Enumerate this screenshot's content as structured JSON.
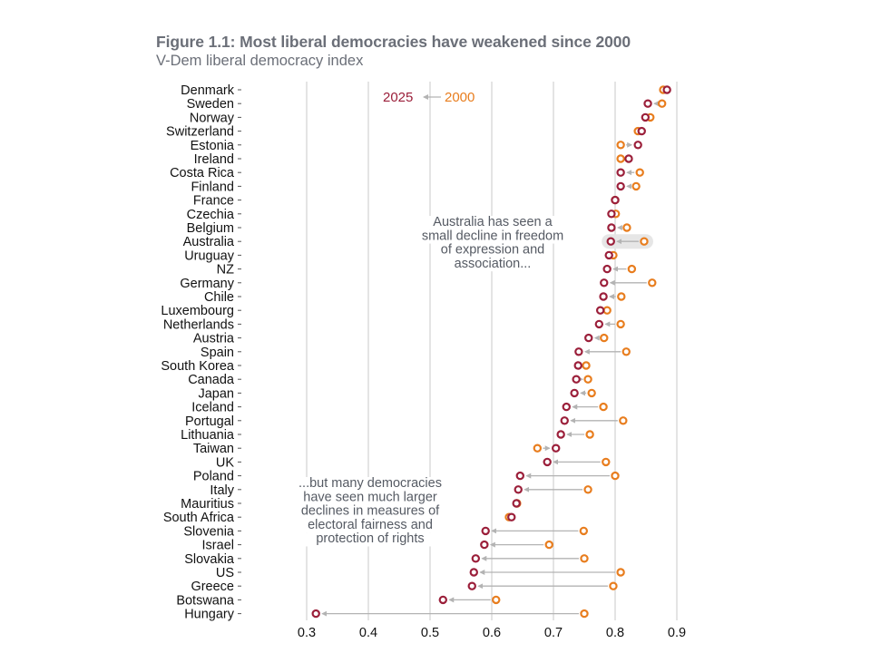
{
  "title": "Figure 1.1: Most liberal democracies have weakened since 2000",
  "subtitle": "V-Dem liberal democracy index",
  "colors": {
    "y2025": "#9b1f3a",
    "y2000": "#e87d1e",
    "arrow": "#b3b3b3",
    "grid": "#c8c8c8",
    "highlight": "#e6e6e6"
  },
  "chart_data": {
    "type": "scatter",
    "subtype": "dumbbell-arrow",
    "title": "Figure 1.1: Most liberal democracies have weakened since 2000",
    "subtitle": "V-Dem liberal democracy index",
    "xlabel": "",
    "ylabel": "",
    "xlim": [
      0.3,
      0.9
    ],
    "xticks": [
      "0.3",
      "0.4",
      "0.5",
      "0.6",
      "0.7",
      "0.8",
      "0.9"
    ],
    "grid": "vertical",
    "legend": {
      "placement": "top-center",
      "from_label": "2000",
      "to_label": "2025"
    },
    "categories": [
      "Denmark",
      "Sweden",
      "Norway",
      "Switzerland",
      "Estonia",
      "Ireland",
      "Costa Rica",
      "Finland",
      "France",
      "Czechia",
      "Belgium",
      "Australia",
      "Uruguay",
      "NZ",
      "Germany",
      "Chile",
      "Luxembourg",
      "Netherlands",
      "Austria",
      "Spain",
      "South Korea",
      "Canada",
      "Japan",
      "Iceland",
      "Portugal",
      "Lithuania",
      "Taiwan",
      "UK",
      "Poland",
      "Italy",
      "Mauritius",
      "South Africa",
      "Slovenia",
      "Israel",
      "Slovakia",
      "US",
      "Greece",
      "Botswana",
      "Hungary"
    ],
    "series": [
      {
        "name": "2000",
        "values": [
          0.878,
          0.876,
          0.857,
          0.837,
          0.809,
          0.809,
          0.84,
          0.834,
          0.8,
          0.801,
          0.819,
          0.847,
          0.797,
          0.827,
          0.86,
          0.81,
          0.787,
          0.809,
          0.782,
          0.818,
          0.753,
          0.756,
          0.762,
          0.781,
          0.813,
          0.759,
          0.674,
          0.785,
          0.8,
          0.756,
          0.641,
          0.628,
          0.749,
          0.693,
          0.75,
          0.809,
          0.797,
          0.607,
          0.75
        ]
      },
      {
        "name": "2025",
        "values": [
          0.884,
          0.853,
          0.849,
          0.843,
          0.837,
          0.822,
          0.809,
          0.809,
          0.8,
          0.794,
          0.794,
          0.793,
          0.79,
          0.787,
          0.782,
          0.781,
          0.776,
          0.774,
          0.757,
          0.741,
          0.74,
          0.737,
          0.734,
          0.721,
          0.718,
          0.712,
          0.704,
          0.69,
          0.646,
          0.643,
          0.64,
          0.632,
          0.59,
          0.588,
          0.574,
          0.571,
          0.568,
          0.521,
          0.315
        ]
      }
    ],
    "highlighted": "Australia",
    "annotations": [
      {
        "target": "Australia",
        "lines": [
          "Australia has seen a",
          "small decline in freedom",
          "of expression and",
          "association..."
        ]
      },
      {
        "target": "Slovenia",
        "lines": [
          "...but many democracies",
          "have seen much larger",
          "declines in measures of",
          "electoral fairness and",
          "protection of rights"
        ]
      }
    ]
  }
}
